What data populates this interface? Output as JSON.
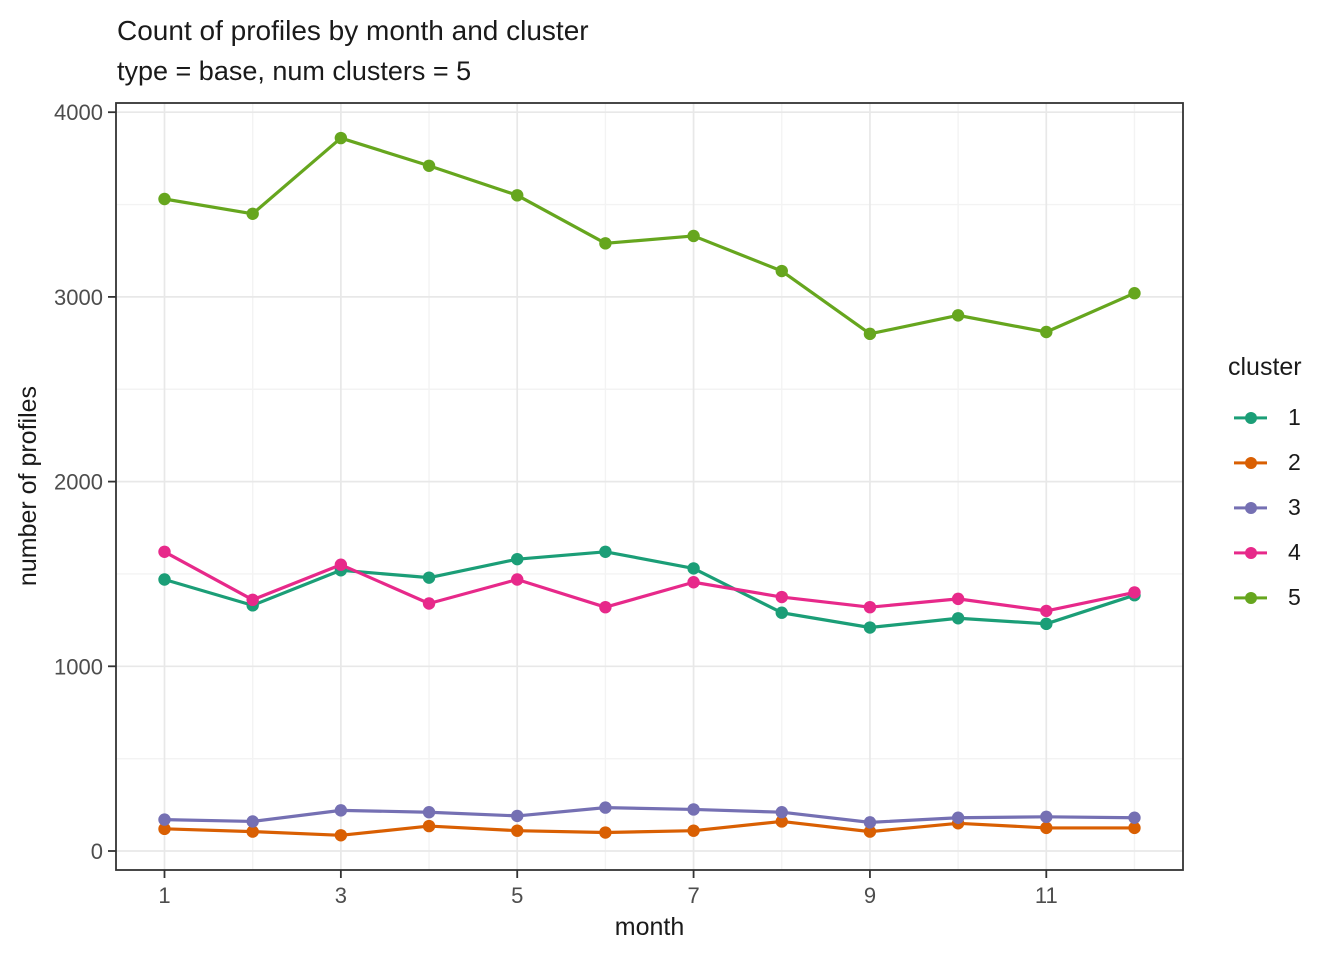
{
  "legend": {
    "title": "cluster",
    "position": "right"
  },
  "colors": {
    "panel_border": "#333333",
    "tick_mark": "#333333",
    "tick_label": "#4d4d4d",
    "text": "#1a1a1a",
    "grid_major": "#e8e8e8",
    "grid_minor": "#f3f3f3",
    "background": "#ffffff"
  },
  "chart_data": {
    "type": "line",
    "title": "Count of profiles by month and cluster",
    "subtitle": "type = base, num clusters = 5",
    "xlabel": "month",
    "ylabel": "number of profiles",
    "x": [
      1,
      2,
      3,
      4,
      5,
      6,
      7,
      8,
      9,
      10,
      11,
      12
    ],
    "x_ticks": [
      1,
      3,
      5,
      7,
      9,
      11
    ],
    "x_tick_labels": [
      "1",
      "3",
      "5",
      "7",
      "9",
      "11"
    ],
    "x_minor_ticks": [
      2,
      4,
      6,
      8,
      10,
      12
    ],
    "y_ticks": [
      0,
      1000,
      2000,
      3000,
      4000
    ],
    "y_tick_labels": [
      "0",
      "1000",
      "2000",
      "3000",
      "4000"
    ],
    "y_minor_ticks": [
      500,
      1500,
      2500,
      3500
    ],
    "ylim": [
      0,
      4000
    ],
    "grid": true,
    "legend_position": "right",
    "marker": "circle",
    "series": [
      {
        "name": "1",
        "color": "#1B9E77",
        "values": [
          1470,
          1330,
          1520,
          1480,
          1580,
          1620,
          1530,
          1290,
          1210,
          1260,
          1230,
          1385
        ]
      },
      {
        "name": "2",
        "color": "#D95F02",
        "values": [
          120,
          105,
          85,
          135,
          110,
          100,
          110,
          160,
          105,
          150,
          125,
          125
        ]
      },
      {
        "name": "3",
        "color": "#7570B3",
        "values": [
          170,
          160,
          220,
          210,
          190,
          235,
          225,
          210,
          155,
          180,
          185,
          180
        ]
      },
      {
        "name": "4",
        "color": "#E7298A",
        "values": [
          1620,
          1360,
          1550,
          1340,
          1470,
          1320,
          1455,
          1375,
          1320,
          1365,
          1300,
          1400
        ]
      },
      {
        "name": "5",
        "color": "#66A61E",
        "values": [
          3530,
          3450,
          3860,
          3710,
          3550,
          3290,
          3330,
          3140,
          2800,
          2900,
          2810,
          3020
        ]
      }
    ]
  }
}
